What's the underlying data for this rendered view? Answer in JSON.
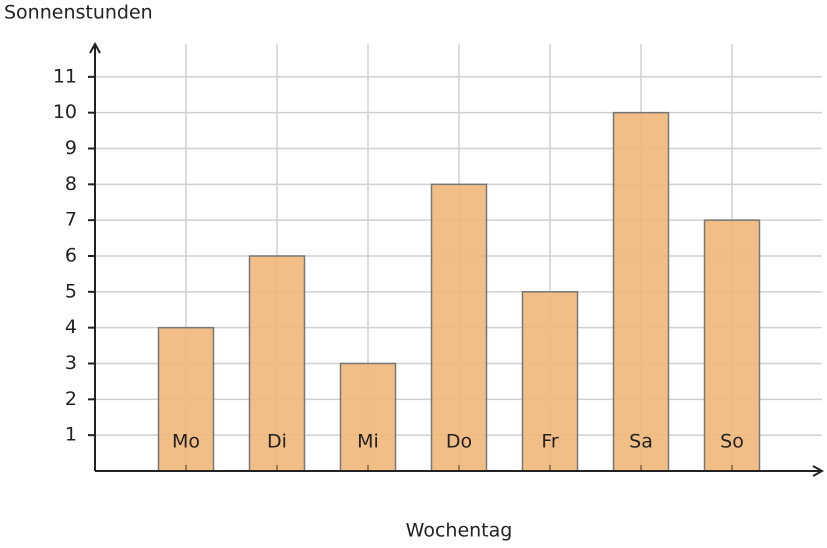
{
  "chart_data": {
    "type": "bar",
    "y_label": "Sonnenstunden",
    "x_label": "Wochentag",
    "categories": [
      "Mo",
      "Di",
      "Mi",
      "Do",
      "Fr",
      "Sa",
      "So"
    ],
    "values": [
      4,
      6,
      3,
      8,
      5,
      10,
      7
    ],
    "color": "#f0b878",
    "ylim": [
      0,
      12
    ],
    "yticks": [
      1,
      2,
      3,
      4,
      5,
      6,
      7,
      8,
      9,
      10,
      11
    ],
    "grid": true
  }
}
